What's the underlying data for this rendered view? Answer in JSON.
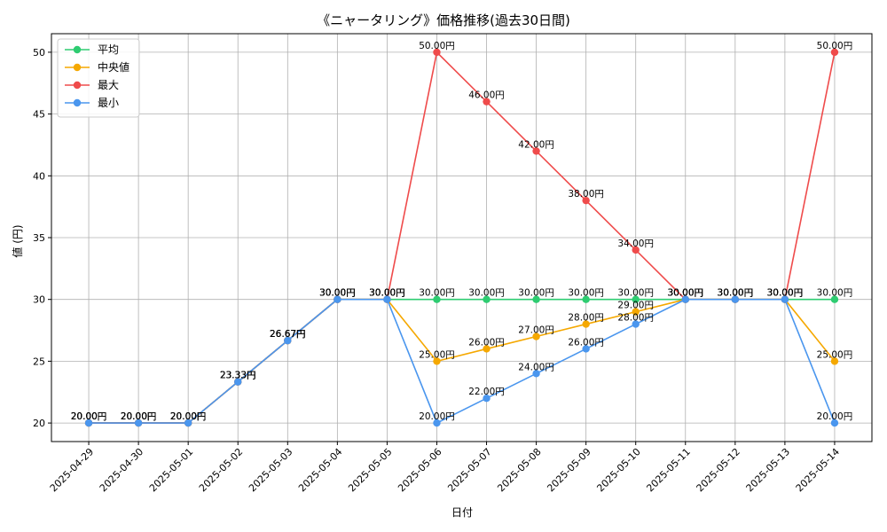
{
  "chart_data": {
    "type": "line",
    "title": "《ニャータリング》価格推移(過去30日間)",
    "xlabel": "日付",
    "ylabel": "値 (円)",
    "ylim": [
      18.5,
      51.5
    ],
    "yticks": [
      20,
      25,
      30,
      35,
      40,
      45,
      50
    ],
    "grid": true,
    "legend_position": "top-left",
    "label_suffix": "円",
    "categories": [
      "2025-04-29",
      "2025-04-30",
      "2025-05-01",
      "2025-05-02",
      "2025-05-03",
      "2025-05-04",
      "2025-05-05",
      "2025-05-06",
      "2025-05-07",
      "2025-05-08",
      "2025-05-09",
      "2025-05-10",
      "2025-05-11",
      "2025-05-12",
      "2025-05-13",
      "2025-05-14"
    ],
    "series": [
      {
        "name": "平均",
        "color": "#2ecc71",
        "values": [
          20,
          20,
          20,
          23.33,
          26.67,
          30,
          30,
          30,
          30,
          30,
          30,
          30,
          30,
          30,
          30,
          30
        ]
      },
      {
        "name": "中央値",
        "color": "#f5a800",
        "values": [
          20,
          20,
          20,
          23.33,
          26.67,
          30,
          30,
          25,
          26,
          27,
          28,
          29,
          30,
          30,
          30,
          25
        ]
      },
      {
        "name": "最大",
        "color": "#ef4b4b",
        "values": [
          20,
          20,
          20,
          23.33,
          26.67,
          30,
          30,
          50,
          46,
          42,
          38,
          34,
          30,
          30,
          30,
          50
        ]
      },
      {
        "name": "最小",
        "color": "#4a96ee",
        "values": [
          20,
          20,
          20,
          23.33,
          26.67,
          30,
          30,
          20,
          22,
          24,
          26,
          28,
          30,
          30,
          30,
          20
        ]
      }
    ]
  }
}
